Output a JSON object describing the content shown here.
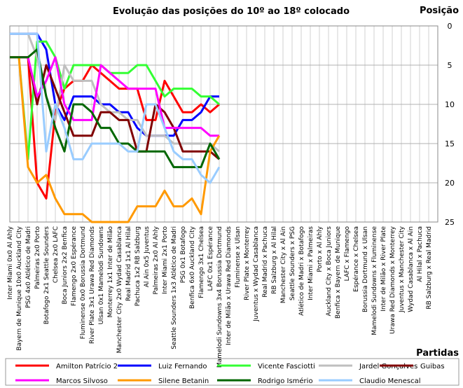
{
  "chart_data": {
    "type": "line",
    "title": "Evolução das posições do 10º ao 18º colocado",
    "y_label": "Posição",
    "x_label": "Partidas",
    "categories": [
      "Inter Miami 0x0 Al Ahly",
      "Bayern de Munique 10x0 Auckland City",
      "PSG 4x0 Atlético de Madri",
      "Palmeiras 2x0 Porto",
      "Botafogo 2x1 Seattle Sounders",
      "Chelsea 2x0 LAFC",
      "Boca Juniors 2x2 Benfica",
      "Flamengo 2x0 Espérance",
      "Fluminense 0x0 Borussia Dortmund",
      "River Plate 3x1 Urawa Red Diamonds",
      "Ulsan 0x1 Mamelodi Sundowns",
      "Monterrey 1x1 Inter de Milão",
      "Manchester City 2x0 Wydad Casablanca",
      "Real Madrid 1x1 Al Hilal",
      "Pachuca 1x2 RB Salzburg",
      "Al Ain 0x5 Juventus",
      "Palmeiras 2x0 Al Ahly",
      "Inter Miami 2x1 Porto",
      "Seattle Sounders 1x3 Atlético de Madri",
      "PSG 0x1 Botafogo",
      "Benfica 6x0 Auckland City",
      "Flamengo 3x1 Chelsea",
      "LAFC 0x1 Espérance",
      "Mamelodi Sundowns 3x4 Borussia Dortmund",
      "Inter de Milão x Urawa Red Diamonds",
      "Fluminense x Ulsan",
      "River Plate x Monterrey",
      "Juventus x Wydad Casablanca",
      "Real Madrid x Pachuca",
      "RB Salzburg x Al Hilal",
      "Manchester City x Al Ain",
      "Seattle Sounders x PSG",
      "Atlético de Madri x Botafogo",
      "Inter Miami x Palmeiras",
      "Porto x Al Ahly",
      "Auckland City x Boca Juniors",
      "Benfica x Bayern de Munique",
      "LAFC x Flamengo",
      "Espérance x Chelsea",
      "Borussia Dortmund x Ulsan",
      "Mamelodi Sundowns x Fluminense",
      "Inter de Milão x River Plate",
      "Urawa Red Diamonds x Monterrey",
      "Juventus x Manchester City",
      "Wydad Casablanca x Al Ain",
      "Al Hilal x Pachuca",
      "RB Salzburg x Real Madrid"
    ],
    "series": [
      {
        "name": "Amilton Patrício 2",
        "color": "#ff0000",
        "values": [
          4,
          4,
          4,
          20,
          22,
          11,
          8,
          7,
          7,
          5,
          6,
          7,
          8,
          8,
          8,
          12,
          12,
          7,
          9,
          11,
          11,
          10,
          11,
          10,
          null,
          null,
          null,
          null,
          null,
          null,
          null,
          null,
          null,
          null,
          null,
          null,
          null,
          null,
          null,
          null,
          null,
          null,
          null,
          null,
          null,
          null,
          null
        ]
      },
      {
        "name": "Luiz Fernando",
        "color": "#0000ff",
        "values": [
          1,
          1,
          1,
          1,
          3,
          10,
          12,
          9,
          9,
          9,
          10,
          10,
          11,
          11,
          13,
          14,
          14,
          14,
          14,
          12,
          12,
          11,
          9,
          9,
          null,
          null,
          null,
          null,
          null,
          null,
          null,
          null,
          null,
          null,
          null,
          null,
          null,
          null,
          null,
          null,
          null,
          null,
          null,
          null,
          null,
          null,
          null
        ]
      },
      {
        "name": "Vicente Fasciotti",
        "color": "#33ff33",
        "values": [
          4,
          4,
          17,
          2,
          2,
          4,
          8,
          5,
          5,
          5,
          5,
          6,
          6,
          6,
          5,
          5,
          7,
          9,
          8,
          8,
          8,
          9,
          9,
          10,
          null,
          null,
          null,
          null,
          null,
          null,
          null,
          null,
          null,
          null,
          null,
          null,
          null,
          null,
          null,
          null,
          null,
          null,
          null,
          null,
          null,
          null,
          null
        ]
      },
      {
        "name": "Jardel Gonçalves",
        "color": "#bfbfbf",
        "values": [
          1,
          1,
          1,
          4,
          9,
          12,
          5,
          7,
          7,
          7,
          10,
          11,
          11,
          12,
          12,
          14,
          14,
          14,
          15,
          15,
          15,
          15,
          15,
          16,
          null,
          null,
          null,
          null,
          null,
          null,
          null,
          null,
          null,
          null,
          null,
          null,
          null,
          null,
          null,
          null,
          null,
          null,
          null,
          null,
          null,
          null,
          null
        ]
      },
      {
        "name": "Guibas",
        "color": "#800000",
        "values": [
          4,
          4,
          4,
          10,
          5,
          8,
          11,
          14,
          14,
          14,
          11,
          11,
          12,
          12,
          16,
          16,
          10,
          11,
          13,
          16,
          16,
          16,
          16,
          17,
          null,
          null,
          null,
          null,
          null,
          null,
          null,
          null,
          null,
          null,
          null,
          null,
          null,
          null,
          null,
          null,
          null,
          null,
          null,
          null,
          null,
          null,
          null
        ]
      },
      {
        "name": "Marcos Silvoso",
        "color": "#ff00ff",
        "values": [
          4,
          4,
          4,
          9,
          7,
          4,
          10,
          12,
          12,
          12,
          5,
          6,
          7,
          8,
          8,
          8,
          8,
          13,
          13,
          13,
          13,
          13,
          14,
          14,
          null,
          null,
          null,
          null,
          null,
          null,
          null,
          null,
          null,
          null,
          null,
          null,
          null,
          null,
          null,
          null,
          null,
          null,
          null,
          null,
          null,
          null,
          null
        ]
      },
      {
        "name": "Silene Betanin",
        "color": "#ff9900",
        "values": [
          4,
          4,
          18,
          20,
          19,
          22,
          24,
          24,
          24,
          25,
          25,
          25,
          25,
          25,
          23,
          23,
          23,
          21,
          23,
          23,
          22,
          24,
          16,
          14,
          null,
          null,
          null,
          null,
          null,
          null,
          null,
          null,
          null,
          null,
          null,
          null,
          null,
          null,
          null,
          null,
          null,
          null,
          null,
          null,
          null,
          null,
          null
        ]
      },
      {
        "name": "Rodrigo Ismério",
        "color": "#006600",
        "values": [
          4,
          4,
          4,
          3,
          9,
          13,
          16,
          10,
          10,
          11,
          13,
          13,
          15,
          15,
          16,
          16,
          16,
          16,
          18,
          18,
          18,
          18,
          15,
          17,
          null,
          null,
          null,
          null,
          null,
          null,
          null,
          null,
          null,
          null,
          null,
          null,
          null,
          null,
          null,
          null,
          null,
          null,
          null,
          null,
          null,
          null,
          null
        ]
      },
      {
        "name": "Claudio Menescal",
        "color": "#99ccff",
        "values": [
          1,
          1,
          1,
          1,
          16,
          10,
          13,
          17,
          17,
          15,
          15,
          15,
          15,
          16,
          16,
          10,
          10,
          13,
          16,
          17,
          17,
          19,
          20,
          18,
          null,
          null,
          null,
          null,
          null,
          null,
          null,
          null,
          null,
          null,
          null,
          null,
          null,
          null,
          null,
          null,
          null,
          null,
          null,
          null,
          null,
          null,
          null
        ]
      }
    ],
    "ylim": [
      0,
      25
    ],
    "yticks": [
      0,
      5,
      10,
      15,
      20,
      25
    ],
    "y_inverted": true,
    "grid": true
  }
}
